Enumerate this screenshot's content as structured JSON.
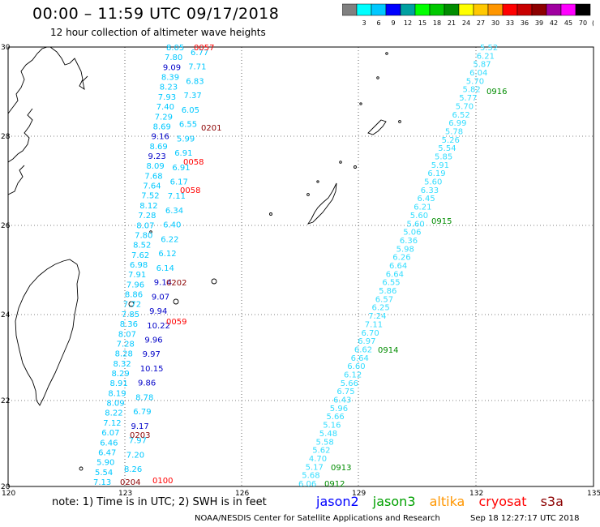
{
  "title": "00:00 – 11:59 UTC 09/17/2018",
  "subtitle": "12 hour collection of altimeter wave heights",
  "color_scale": {
    "unit": "(ft)",
    "bins": [
      {
        "label": "",
        "color": "#808080"
      },
      {
        "label": "3",
        "color": "#00ffff"
      },
      {
        "label": "6",
        "color": "#00c8ff"
      },
      {
        "label": "9",
        "color": "#0000ff"
      },
      {
        "label": "12",
        "color": "#00a0a0"
      },
      {
        "label": "15",
        "color": "#00ff00"
      },
      {
        "label": "18",
        "color": "#00c800"
      },
      {
        "label": "21",
        "color": "#008c00"
      },
      {
        "label": "24",
        "color": "#ffff00"
      },
      {
        "label": "27",
        "color": "#ffc800"
      },
      {
        "label": "30",
        "color": "#ff9600"
      },
      {
        "label": "33",
        "color": "#ff0000"
      },
      {
        "label": "36",
        "color": "#c80000"
      },
      {
        "label": "39",
        "color": "#8c0000"
      },
      {
        "label": "42",
        "color": "#a000a0"
      },
      {
        "label": "45",
        "color": "#ff00ff"
      },
      {
        "label": "70",
        "color": "#000000"
      }
    ]
  },
  "axes": {
    "lon_ticks": [
      "120",
      "123",
      "126",
      "129",
      "132",
      "135"
    ],
    "lat_ticks": [
      "20",
      "22",
      "24",
      "26",
      "28",
      "30"
    ]
  },
  "tracks": {
    "west_values": [
      "8.05",
      "7.80",
      "9.09",
      "8.39",
      "8.23",
      "7.93",
      "7.40",
      "7.29",
      "8.69",
      "9.16",
      "8.69",
      "9.23",
      "8.09",
      "7.68",
      "7.64",
      "7.52",
      "8.12",
      "7.28",
      "8.07",
      "7.80",
      "8.52",
      "7.62",
      "6.98",
      "7.91",
      "7.96",
      "8.86",
      "7.72",
      "7.85",
      "8.36",
      "8.07",
      "7.28",
      "8.28",
      "8.32",
      "8.29",
      "8.91",
      "8.19",
      "8.09",
      "8.22",
      "7.12",
      "6.07",
      "6.46",
      "6.47",
      "5.90",
      "5.54",
      "7.13"
    ],
    "west_values_b": [
      "6.77",
      "7.71",
      "6.83",
      "7.37",
      "6.05",
      "6.55",
      "5.99",
      "6.91",
      "6.91",
      "6.17",
      "7.11",
      "6.34",
      "6.40",
      "6.22",
      "6.12",
      "6.14",
      "9.14",
      "9.07",
      "9.94",
      "10.22",
      "9.96",
      "9.97",
      "10.15",
      "9.86",
      "8.78",
      "6.79",
      "9.17",
      "7.97",
      "7.20",
      "8.26"
    ],
    "west_dark": [
      "9.09",
      "9.16",
      "9.23",
      "9.14",
      "9.07",
      "9.94",
      "10.22",
      "9.96",
      "9.97",
      "10.15",
      "9.86",
      "9.17"
    ],
    "east_values": [
      "5.52",
      "6.21",
      "5.87",
      "6.04",
      "5.70",
      "5.82",
      "5.77",
      "5.70",
      "6.52",
      "6.99",
      "5.78",
      "5.26",
      "5.54",
      "5.85",
      "5.91",
      "6.19",
      "5.60",
      "6.33",
      "6.45",
      "6.21",
      "5.60",
      "5.60",
      "5.06",
      "6.36",
      "5.98",
      "6.26",
      "6.64",
      "6.64",
      "6.55",
      "5.86",
      "6.57",
      "6.25",
      "7.24",
      "7.11",
      "6.70",
      "6.97",
      "6.62",
      "6.64",
      "6.60",
      "6.12",
      "5.66",
      "6.75",
      "6.43",
      "5.96",
      "5.66",
      "5.16",
      "5.48",
      "5.58",
      "5.62",
      "4.70",
      "5.17",
      "5.68",
      "6.06"
    ]
  },
  "time_labels": [
    {
      "text": "0057",
      "color": "#ff0000"
    },
    {
      "text": "0201",
      "color": "#8c0000"
    },
    {
      "text": "0058",
      "color": "#ff0000"
    },
    {
      "text": "0058",
      "color": "#ff0000"
    },
    {
      "text": "0202",
      "color": "#8c0000"
    },
    {
      "text": "0059",
      "color": "#ff0000"
    },
    {
      "text": "0203",
      "color": "#8c0000"
    },
    {
      "text": "0204",
      "color": "#8c0000"
    },
    {
      "text": "0100",
      "color": "#ff0000"
    },
    {
      "text": "0916",
      "color": "#008c00"
    },
    {
      "text": "0915",
      "color": "#008c00"
    },
    {
      "text": "0914",
      "color": "#008c00"
    },
    {
      "text": "0913",
      "color": "#008c00"
    },
    {
      "text": "0912",
      "color": "#008c00"
    }
  ],
  "footer": {
    "note": "note: 1) Time is in UTC; 2) SWH is in feet",
    "satellites": [
      {
        "name": "jason2",
        "color": "#0000ff"
      },
      {
        "name": "jason3",
        "color": "#00a000"
      },
      {
        "name": "altika",
        "color": "#ff9600"
      },
      {
        "name": "cryosat",
        "color": "#ff0000"
      },
      {
        "name": "s3a",
        "color": "#8c0000"
      }
    ],
    "credit": "NOAA/NESDIS Center for Satellite Applications and Research",
    "timestamp": "Sep 18 12:27:17 UTC 2018"
  }
}
